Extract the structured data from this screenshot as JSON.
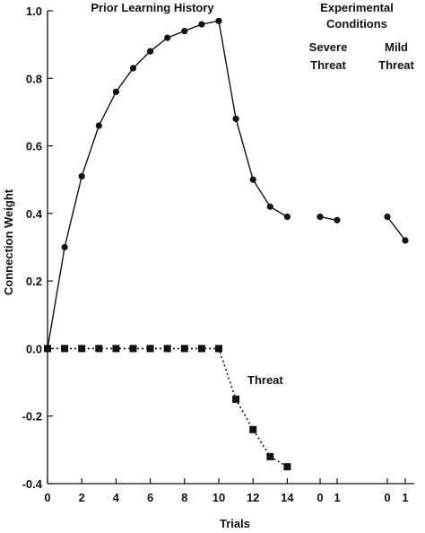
{
  "chart_data": {
    "type": "line",
    "title": "",
    "xlabel": "Trials",
    "ylabel": "Connection Weight",
    "ylim": [
      -0.4,
      1.0
    ],
    "yticks": [
      "1.0",
      "0.8",
      "0.6",
      "0.4",
      "0.2",
      "0.0",
      "-0.2",
      "-0.4"
    ],
    "xticks": [
      "0",
      "2",
      "4",
      "6",
      "8",
      "10",
      "12",
      "14",
      "0",
      "1",
      "0",
      "1"
    ],
    "annotations": {
      "history": "Prior Learning History",
      "conditions_line1": "Experimental",
      "conditions_line2": "Conditions",
      "severe_line1": "Severe",
      "severe_line2": "Threat",
      "mild_line1": "Mild",
      "mild_line2": "Threat",
      "threat": "Threat"
    },
    "series": [
      {
        "marker": "circle",
        "style": "solid",
        "segments": [
          {
            "x": [
              0,
              1,
              2,
              3,
              4,
              5,
              6,
              7,
              8,
              9,
              10,
              11,
              12,
              13,
              14
            ],
            "y": [
              0.0,
              0.3,
              0.51,
              0.66,
              0.76,
              0.83,
              0.88,
              0.92,
              0.94,
              0.96,
              0.97,
              0.68,
              0.5,
              0.42,
              0.39
            ]
          },
          {
            "condition": "Severe Threat",
            "x": [
              0,
              1
            ],
            "y": [
              0.39,
              0.38
            ]
          },
          {
            "condition": "Mild Threat",
            "x": [
              0,
              1
            ],
            "y": [
              0.39,
              0.32
            ]
          }
        ]
      },
      {
        "name": "Threat",
        "marker": "square",
        "style": "dotted",
        "segments": [
          {
            "x": [
              0,
              1,
              2,
              3,
              4,
              5,
              6,
              7,
              8,
              9,
              10,
              11,
              12,
              13,
              14
            ],
            "y": [
              0.0,
              0.0,
              0.0,
              0.0,
              0.0,
              0.0,
              0.0,
              0.0,
              0.0,
              0.0,
              0.0,
              -0.15,
              -0.24,
              -0.32,
              -0.35
            ]
          }
        ]
      }
    ]
  }
}
